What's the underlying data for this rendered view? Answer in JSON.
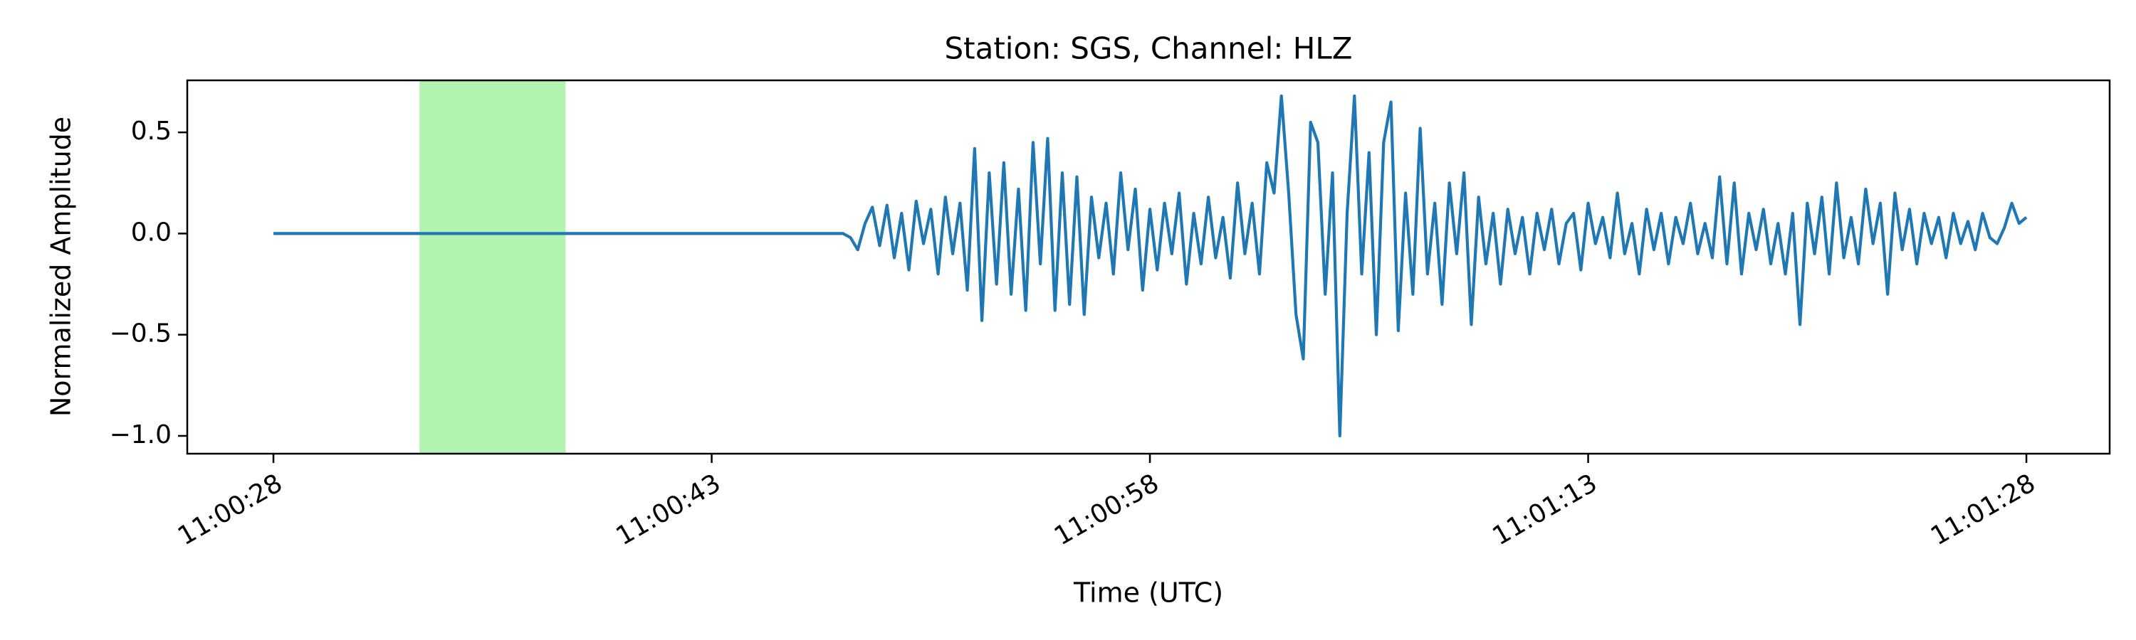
{
  "chart_data": {
    "type": "line",
    "title": "Station: SGS, Channel: HLZ",
    "x_label": "Time (UTC)",
    "y_label": "Normalized Amplitude",
    "xlim": [
      39625.05,
      39690.85
    ],
    "ylim": [
      -1.088,
      0.757
    ],
    "xticks": [
      {
        "value": 39628,
        "label": "11:00:28"
      },
      {
        "value": 39643,
        "label": "11:00:43"
      },
      {
        "value": 39658,
        "label": "11:00:58"
      },
      {
        "value": 39673,
        "label": "11:01:13"
      },
      {
        "value": 39688,
        "label": "11:01:28"
      }
    ],
    "yticks": [
      {
        "value": 0.5,
        "label": "0.5"
      },
      {
        "value": 0,
        "label": "0.0"
      },
      {
        "value": -0.5,
        "label": "−0.5"
      },
      {
        "value": -1,
        "label": "−1.0"
      }
    ],
    "highlight_span": {
      "range": [
        39633,
        39638
      ],
      "color": "#b3f3b0"
    },
    "x": [
      39628,
      39647.5,
      39647.75,
      39648,
      39648.25,
      39648.5,
      39648.75,
      39649,
      39649.25,
      39649.5,
      39649.75,
      39650,
      39650.25,
      39650.5,
      39650.75,
      39651,
      39651.25,
      39651.5,
      39651.75,
      39652,
      39652.25,
      39652.5,
      39652.75,
      39653,
      39653.25,
      39653.5,
      39653.75,
      39654,
      39654.25,
      39654.5,
      39654.75,
      39655,
      39655.25,
      39655.5,
      39655.75,
      39656,
      39656.25,
      39656.5,
      39656.75,
      39657,
      39657.25,
      39657.5,
      39657.75,
      39658,
      39658.25,
      39658.5,
      39658.75,
      39659,
      39659.25,
      39659.5,
      39659.75,
      39660,
      39660.25,
      39660.5,
      39660.75,
      39661,
      39661.25,
      39661.5,
      39661.75,
      39662,
      39662.25,
      39662.5,
      39662.75,
      39663,
      39663.25,
      39663.5,
      39663.75,
      39664,
      39664.25,
      39664.5,
      39664.75,
      39665,
      39665.25,
      39665.5,
      39665.75,
      39666,
      39666.25,
      39666.5,
      39666.75,
      39667,
      39667.25,
      39667.5,
      39667.75,
      39668,
      39668.25,
      39668.5,
      39668.75,
      39669,
      39669.25,
      39669.5,
      39669.75,
      39670,
      39670.25,
      39670.5,
      39670.75,
      39671,
      39671.25,
      39671.5,
      39671.75,
      39672,
      39672.25,
      39672.5,
      39672.75,
      39673,
      39673.25,
      39673.5,
      39673.75,
      39674,
      39674.25,
      39674.5,
      39674.75,
      39675,
      39675.25,
      39675.5,
      39675.75,
      39676,
      39676.25,
      39676.5,
      39676.75,
      39677,
      39677.25,
      39677.5,
      39677.75,
      39678,
      39678.25,
      39678.5,
      39678.75,
      39679,
      39679.25,
      39679.5,
      39679.75,
      39680,
      39680.25,
      39680.5,
      39680.75,
      39681,
      39681.25,
      39681.5,
      39681.75,
      39682,
      39682.25,
      39682.5,
      39682.75,
      39683,
      39683.25,
      39683.5,
      39683.75,
      39684,
      39684.25,
      39684.5,
      39684.75,
      39685,
      39685.25,
      39685.5,
      39685.75,
      39686,
      39686.25,
      39686.5,
      39686.75,
      39687,
      39687.25,
      39687.5,
      39687.75,
      39688
    ],
    "series": [
      {
        "color": "#1f77b4",
        "values": [
          0,
          0,
          -0.02,
          -0.08,
          0.05,
          0.13,
          -0.06,
          0.14,
          -0.12,
          0.1,
          -0.18,
          0.16,
          -0.05,
          0.12,
          -0.2,
          0.18,
          -0.1,
          0.15,
          -0.28,
          0.42,
          -0.43,
          0.3,
          -0.25,
          0.35,
          -0.3,
          0.22,
          -0.38,
          0.45,
          -0.15,
          0.47,
          -0.38,
          0.3,
          -0.35,
          0.28,
          -0.4,
          0.18,
          -0.12,
          0.15,
          -0.2,
          0.3,
          -0.08,
          0.22,
          -0.28,
          0.12,
          -0.18,
          0.15,
          -0.1,
          0.2,
          -0.25,
          0.1,
          -0.15,
          0.18,
          -0.12,
          0.08,
          -0.22,
          0.25,
          -0.1,
          0.15,
          -0.2,
          0.35,
          0.2,
          0.68,
          0.2,
          -0.4,
          -0.62,
          0.55,
          0.45,
          -0.3,
          0.3,
          -1.0,
          0.1,
          0.68,
          -0.2,
          0.4,
          -0.5,
          0.45,
          0.65,
          -0.48,
          0.2,
          -0.3,
          0.52,
          -0.2,
          0.15,
          -0.35,
          0.25,
          -0.1,
          0.3,
          -0.45,
          0.18,
          -0.15,
          0.1,
          -0.25,
          0.12,
          -0.1,
          0.08,
          -0.2,
          0.1,
          -0.08,
          0.12,
          -0.15,
          0.05,
          0.1,
          -0.18,
          0.15,
          -0.05,
          0.08,
          -0.12,
          0.2,
          -0.1,
          0.05,
          -0.2,
          0.12,
          -0.08,
          0.1,
          -0.15,
          0.08,
          -0.05,
          0.15,
          -0.1,
          0.05,
          -0.12,
          0.28,
          -0.15,
          0.25,
          -0.2,
          0.1,
          -0.08,
          0.12,
          -0.15,
          0.05,
          -0.2,
          0.1,
          -0.45,
          0.15,
          -0.1,
          0.18,
          -0.2,
          0.25,
          -0.12,
          0.08,
          -0.15,
          0.22,
          -0.05,
          0.15,
          -0.3,
          0.2,
          -0.08,
          0.12,
          -0.15,
          0.1,
          -0.05,
          0.08,
          -0.12,
          0.1,
          -0.05,
          0.06,
          -0.08,
          0.1,
          -0.02,
          -0.05,
          0.03,
          0.15,
          0.05,
          0.08
        ]
      }
    ]
  }
}
